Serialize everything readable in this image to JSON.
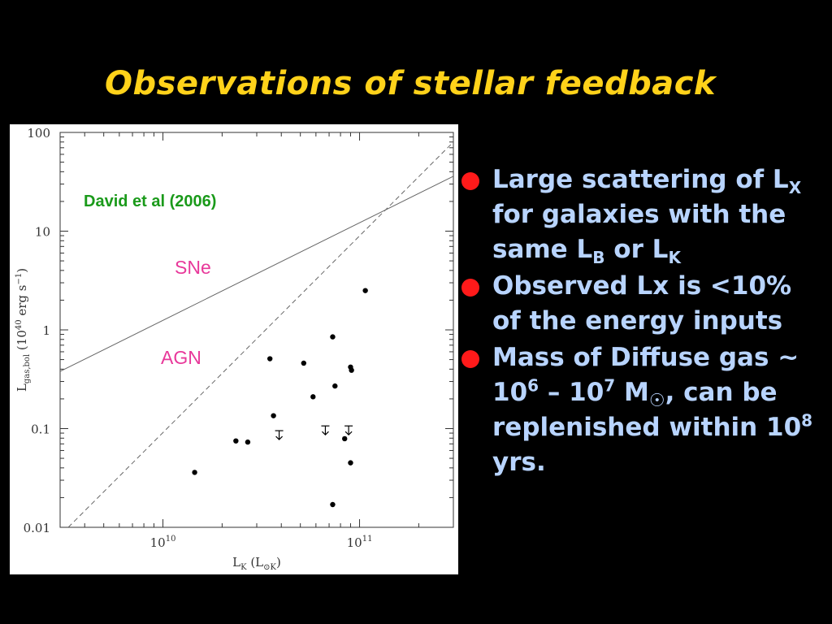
{
  "slide": {
    "title": "Observations of stellar feedback"
  },
  "bullets": [
    {
      "parts": [
        "Large scattering of L",
        "X",
        " for galaxies with the same L",
        "B",
        " or L",
        "K"
      ]
    },
    {
      "text": "Observed Lx is <10% of the energy inputs"
    },
    {
      "parts": [
        "Mass of Diffuse gas ~ 10",
        "6",
        " – 10",
        "7",
        " M",
        "☉",
        ", can be replenished within 10",
        "8",
        " yrs."
      ]
    }
  ],
  "chart_data": {
    "type": "scatter",
    "x_scale": "log",
    "y_scale": "log",
    "xlim": [
      3000000000,
      300000000000
    ],
    "ylim": [
      0.01,
      100
    ],
    "x_ticks": [
      {
        "value": 10000000000,
        "mantissa": "10",
        "exponent": "10"
      },
      {
        "value": 100000000000,
        "mantissa": "10",
        "exponent": "11"
      }
    ],
    "y_ticks": [
      {
        "value": 0.01,
        "label": "0.01"
      },
      {
        "value": 0.1,
        "label": "0.1"
      },
      {
        "value": 1,
        "label": "1"
      },
      {
        "value": 10,
        "label": "10"
      },
      {
        "value": 100,
        "label": "100"
      }
    ],
    "xlabel": {
      "main": "L",
      "sub": "K",
      "rest": "(L",
      "sub2": "⊙K",
      "close": ")"
    },
    "ylabel": {
      "main": "L",
      "sub": "gas,bol",
      "rest": "(10",
      "sup": "40",
      "unit": "erg s",
      "sup2": "−1",
      "close": ")"
    },
    "annotation": "David et al (2006)",
    "annotation_color": "#1a9a1a",
    "line_label_color": "#e8389a",
    "lines": [
      {
        "label": "SNe",
        "style": "solid",
        "points": [
          [
            3000000000,
            0.38
          ],
          [
            300000000000,
            36
          ]
        ]
      },
      {
        "label": "AGN",
        "style": "dashed",
        "points": [
          [
            3300000000,
            0.01
          ],
          [
            300000000000,
            80
          ]
        ]
      }
    ],
    "points": [
      {
        "x": 14500000000,
        "y": 0.036
      },
      {
        "x": 23500000000,
        "y": 0.075
      },
      {
        "x": 27000000000,
        "y": 0.073
      },
      {
        "x": 35000000000,
        "y": 0.51
      },
      {
        "x": 36500000000,
        "y": 0.135
      },
      {
        "x": 52000000000,
        "y": 0.46
      },
      {
        "x": 58000000000,
        "y": 0.21
      },
      {
        "x": 73000000000,
        "y": 0.85
      },
      {
        "x": 75000000000,
        "y": 0.27
      },
      {
        "x": 73000000000,
        "y": 0.017
      },
      {
        "x": 84000000000,
        "y": 0.079
      },
      {
        "x": 90000000000,
        "y": 0.42
      },
      {
        "x": 91000000000,
        "y": 0.39
      },
      {
        "x": 90000000000,
        "y": 0.045
      },
      {
        "x": 107000000000,
        "y": 2.5
      }
    ],
    "upper_limits": [
      {
        "x": 39000000000,
        "y": 0.085
      },
      {
        "x": 67000000000,
        "y": 0.095
      },
      {
        "x": 88000000000,
        "y": 0.095
      }
    ]
  }
}
